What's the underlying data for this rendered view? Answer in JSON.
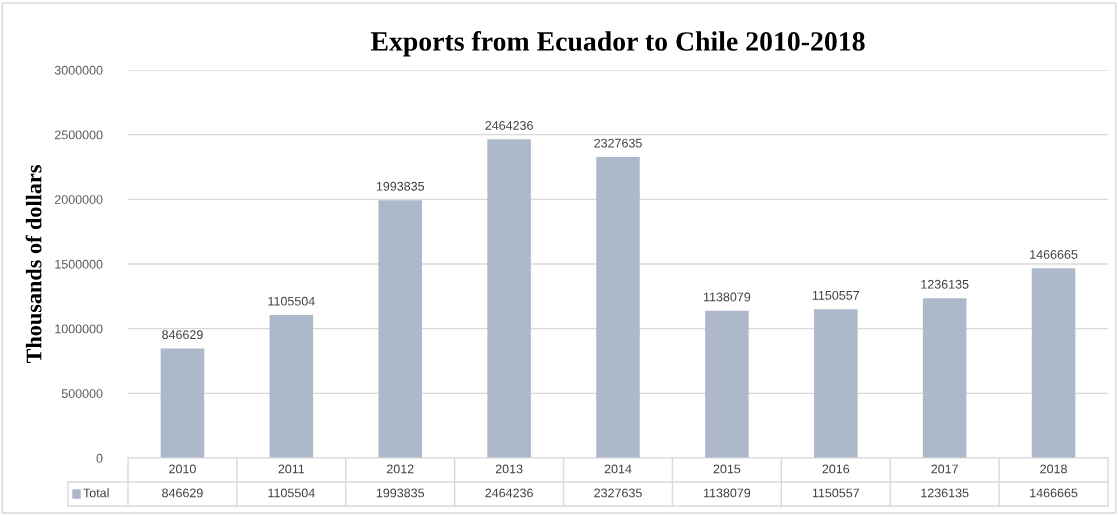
{
  "chart_data": {
    "type": "bar",
    "title": "Exports from Ecuador to Chile 2010-2018",
    "ylabel": "Thousands of dollars",
    "categories": [
      "2010",
      "2011",
      "2012",
      "2013",
      "2014",
      "2015",
      "2016",
      "2017",
      "2018"
    ],
    "series": [
      {
        "name": "Total",
        "color": "#adb9ca",
        "values": [
          846629,
          1105504,
          1993835,
          2464236,
          2327635,
          1138079,
          1150557,
          1236135,
          1466665
        ],
        "value_labels": [
          "846629",
          "1105504",
          "1993835",
          "2464236",
          "2327635",
          "1138079",
          "1150557",
          "1236135",
          "1466665"
        ]
      }
    ],
    "ylim": [
      0,
      3000000
    ],
    "yticks": [
      0,
      500000,
      1000000,
      1500000,
      2000000,
      2500000,
      3000000
    ],
    "grid": "y"
  }
}
